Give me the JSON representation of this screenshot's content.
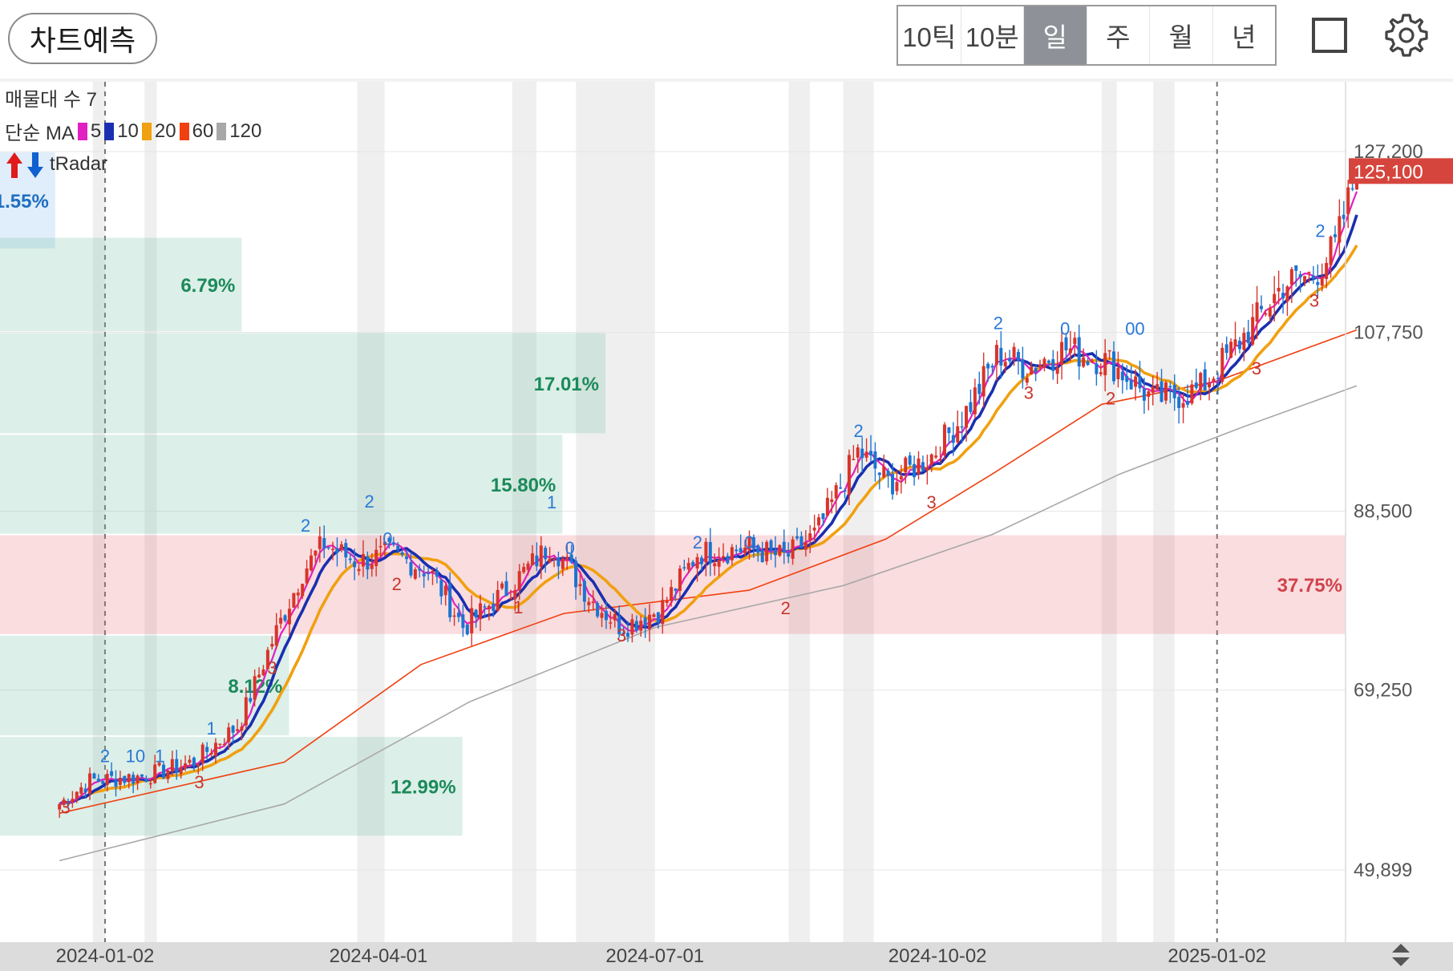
{
  "toolbar": {
    "predict_label": "차트예측",
    "periods": [
      "10틱",
      "10분",
      "일",
      "주",
      "월",
      "년"
    ],
    "active_period": "일"
  },
  "overlay": {
    "volume_profile_label": "매물대 수 7",
    "ma_label": "단순 MA",
    "ma_periods": [
      {
        "label": "5",
        "color": "#e020c0"
      },
      {
        "label": "10",
        "color": "#1a2fb0"
      },
      {
        "label": "20",
        "color": "#f0a010"
      },
      {
        "label": "60",
        "color": "#f04010"
      },
      {
        "label": "120",
        "color": "#a8a8a8"
      }
    ],
    "radar_label": "tRadar"
  },
  "chart_data": {
    "type": "candlestick",
    "y_ticks": [
      "127,200",
      "107,750",
      "88,500",
      "69,250",
      "49,899"
    ],
    "y_tick_values": [
      127200,
      107750,
      88500,
      69250,
      49899
    ],
    "ylim": [
      49899,
      127200
    ],
    "current_price": "125,100",
    "current_price_value": 125100,
    "x_ticks": [
      "2024-01-02",
      "2024-04-01",
      "2024-07-01",
      "2024-10-02",
      "2025-01-02"
    ],
    "volume_profile": [
      {
        "label": "1.55%",
        "low": 116700,
        "high": 127200,
        "share": 1.55
      },
      {
        "label": "6.79%",
        "low": 107750,
        "high": 118000,
        "share": 6.79
      },
      {
        "label": "17.01%",
        "low": 96800,
        "high": 107750,
        "share": 17.01
      },
      {
        "label": "15.80%",
        "low": 86000,
        "high": 96800,
        "share": 15.8
      },
      {
        "label": "37.75%",
        "low": 75200,
        "high": 86000,
        "share": 37.75,
        "highlight": true
      },
      {
        "label": "8.12%",
        "low": 64300,
        "high": 75200,
        "share": 8.12
      },
      {
        "label": "12.99%",
        "low": 53500,
        "high": 64300,
        "share": 12.99
      }
    ],
    "close_path": [
      {
        "date": "2023-12-18",
        "close": 57000
      },
      {
        "date": "2023-12-28",
        "close": 59500
      },
      {
        "date": "2024-01-15",
        "close": 60000
      },
      {
        "date": "2024-01-31",
        "close": 61500
      },
      {
        "date": "2024-02-15",
        "close": 65500
      },
      {
        "date": "2024-02-26",
        "close": 74500
      },
      {
        "date": "2024-03-07",
        "close": 82000
      },
      {
        "date": "2024-03-14",
        "close": 85000
      },
      {
        "date": "2024-03-25",
        "close": 83000
      },
      {
        "date": "2024-04-05",
        "close": 84000
      },
      {
        "date": "2024-04-18",
        "close": 82000
      },
      {
        "date": "2024-04-29",
        "close": 76000
      },
      {
        "date": "2024-05-13",
        "close": 80000
      },
      {
        "date": "2024-05-28",
        "close": 85000
      },
      {
        "date": "2024-06-10",
        "close": 79000
      },
      {
        "date": "2024-06-20",
        "close": 76000
      },
      {
        "date": "2024-07-03",
        "close": 78000
      },
      {
        "date": "2024-07-15",
        "close": 84000
      },
      {
        "date": "2024-08-01",
        "close": 84500
      },
      {
        "date": "2024-08-13",
        "close": 83500
      },
      {
        "date": "2024-08-23",
        "close": 86000
      },
      {
        "date": "2024-09-06",
        "close": 95000
      },
      {
        "date": "2024-09-16",
        "close": 91500
      },
      {
        "date": "2024-09-30",
        "close": 94500
      },
      {
        "date": "2024-10-11",
        "close": 99000
      },
      {
        "date": "2024-10-22",
        "close": 105500
      },
      {
        "date": "2024-11-01",
        "close": 104000
      },
      {
        "date": "2024-11-13",
        "close": 106000
      },
      {
        "date": "2024-11-28",
        "close": 104500
      },
      {
        "date": "2024-12-12",
        "close": 100500
      },
      {
        "date": "2024-12-27",
        "close": 101500
      },
      {
        "date": "2025-01-10",
        "close": 107000
      },
      {
        "date": "2025-01-24",
        "close": 113000
      },
      {
        "date": "2025-02-03",
        "close": 114000
      },
      {
        "date": "2025-02-10",
        "close": 117000
      },
      {
        "date": "2025-02-17",
        "close": 125100
      }
    ],
    "moving_averages": {
      "ma60": [
        {
          "date": "2023-12-18",
          "value": 56000
        },
        {
          "date": "2024-03-01",
          "value": 61500
        },
        {
          "date": "2024-04-15",
          "value": 72000
        },
        {
          "date": "2024-06-01",
          "value": 77500
        },
        {
          "date": "2024-08-01",
          "value": 80000
        },
        {
          "date": "2024-09-15",
          "value": 85500
        },
        {
          "date": "2024-10-20",
          "value": 92500
        },
        {
          "date": "2024-11-25",
          "value": 100000
        },
        {
          "date": "2025-01-02",
          "value": 102500
        },
        {
          "date": "2025-02-17",
          "value": 108000
        }
      ],
      "ma120": [
        {
          "date": "2023-12-18",
          "value": 50900
        },
        {
          "date": "2024-03-01",
          "value": 57000
        },
        {
          "date": "2024-05-01",
          "value": 68000
        },
        {
          "date": "2024-07-01",
          "value": 76000
        },
        {
          "date": "2024-09-01",
          "value": 80500
        },
        {
          "date": "2024-10-20",
          "value": 86000
        },
        {
          "date": "2024-12-01",
          "value": 92500
        },
        {
          "date": "2025-01-10",
          "value": 97500
        },
        {
          "date": "2025-02-17",
          "value": 102000
        }
      ]
    },
    "signal_labels": [
      {
        "text": "2",
        "date": "2024-01-02",
        "price": 61500,
        "kind": "blue"
      },
      {
        "text": "10",
        "date": "2024-01-12",
        "price": 61500,
        "kind": "blue"
      },
      {
        "text": "1",
        "date": "2024-01-20",
        "price": 61500,
        "kind": "blue"
      },
      {
        "text": "1",
        "date": "2024-02-06",
        "price": 64500,
        "kind": "blue"
      },
      {
        "text": "2",
        "date": "2024-03-08",
        "price": 86300,
        "kind": "blue"
      },
      {
        "text": "2",
        "date": "2024-03-29",
        "price": 88900,
        "kind": "blue"
      },
      {
        "text": "0",
        "date": "2024-04-04",
        "price": 84900,
        "kind": "blue"
      },
      {
        "text": "1",
        "date": "2024-05-28",
        "price": 88800,
        "kind": "blue"
      },
      {
        "text": "0",
        "date": "2024-06-03",
        "price": 83900,
        "kind": "blue"
      },
      {
        "text": "2",
        "date": "2024-07-15",
        "price": 84500,
        "kind": "blue"
      },
      {
        "text": "0",
        "date": "2024-08-01",
        "price": 84500,
        "kind": "blue"
      },
      {
        "text": "2",
        "date": "2024-09-06",
        "price": 96500,
        "kind": "blue"
      },
      {
        "text": "2",
        "date": "2024-10-22",
        "price": 108100,
        "kind": "blue"
      },
      {
        "text": "0",
        "date": "2024-11-13",
        "price": 107500,
        "kind": "blue"
      },
      {
        "text": "00",
        "date": "2024-12-06",
        "price": 107500,
        "kind": "blue"
      },
      {
        "text": "2",
        "date": "2025-02-05",
        "price": 118000,
        "kind": "blue"
      },
      {
        "text": "3",
        "date": "2023-12-20",
        "price": 56000,
        "kind": "red"
      },
      {
        "text": "3",
        "date": "2024-02-02",
        "price": 58700,
        "kind": "red"
      },
      {
        "text": "3",
        "date": "2024-02-26",
        "price": 71000,
        "kind": "red"
      },
      {
        "text": "2",
        "date": "2024-04-07",
        "price": 80000,
        "kind": "red"
      },
      {
        "text": "1",
        "date": "2024-05-17",
        "price": 77500,
        "kind": "red"
      },
      {
        "text": "3",
        "date": "2024-06-20",
        "price": 74500,
        "kind": "red"
      },
      {
        "text": "2",
        "date": "2024-08-13",
        "price": 77400,
        "kind": "red"
      },
      {
        "text": "3",
        "date": "2024-09-30",
        "price": 88800,
        "kind": "red"
      },
      {
        "text": "3",
        "date": "2024-11-01",
        "price": 100600,
        "kind": "red"
      },
      {
        "text": "2",
        "date": "2024-11-28",
        "price": 100000,
        "kind": "red"
      },
      {
        "text": "3",
        "date": "2025-01-15",
        "price": 103200,
        "kind": "red"
      },
      {
        "text": "3",
        "date": "2025-02-03",
        "price": 110500,
        "kind": "red"
      }
    ],
    "grid": true,
    "shaded_bands": [
      {
        "from": "2023-12-29",
        "to": "2024-01-02"
      },
      {
        "from": "2024-01-15",
        "to": "2024-01-19"
      },
      {
        "from": "2024-03-25",
        "to": "2024-04-03"
      },
      {
        "from": "2024-05-15",
        "to": "2024-05-23"
      },
      {
        "from": "2024-06-05",
        "to": "2024-07-01"
      },
      {
        "from": "2024-08-14",
        "to": "2024-08-21"
      },
      {
        "from": "2024-09-01",
        "to": "2024-09-11"
      },
      {
        "from": "2024-11-25",
        "to": "2024-11-30"
      },
      {
        "from": "2024-12-12",
        "to": "2024-12-19"
      }
    ]
  }
}
